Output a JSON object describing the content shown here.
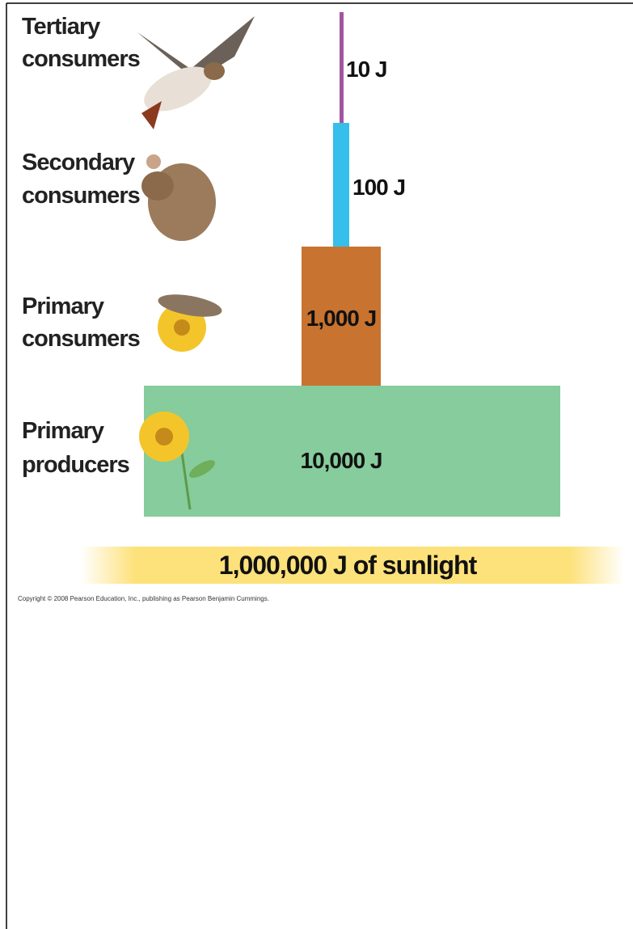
{
  "levels": [
    {
      "name": [
        "Tertiary",
        "consumers"
      ],
      "energy": "10 J"
    },
    {
      "name": [
        "Secondary",
        "consumers"
      ],
      "energy": "100 J"
    },
    {
      "name": [
        "Primary",
        "consumers"
      ],
      "energy": "1,000 J"
    },
    {
      "name": [
        "Primary",
        "producers"
      ],
      "energy": "10,000 J"
    }
  ],
  "sunlight": "1,000,000 J of sunlight",
  "copyright": "Copyright © 2008 Pearson Education, Inc., publishing as Pearson Benjamin Cummings."
}
